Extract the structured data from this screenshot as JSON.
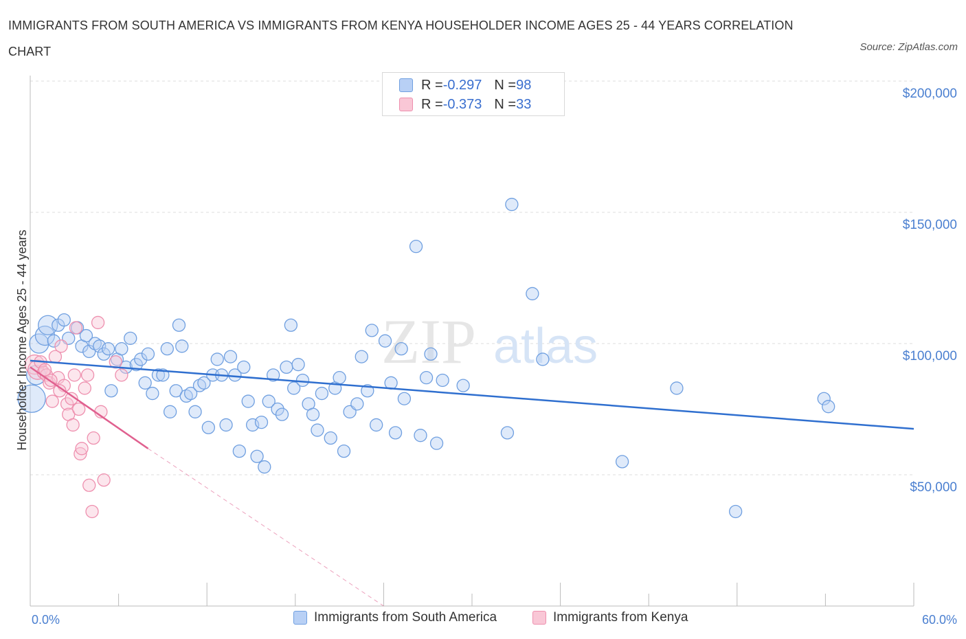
{
  "title": "IMMIGRANTS FROM SOUTH AMERICA VS IMMIGRANTS FROM KENYA HOUSEHOLDER INCOME AGES 25 - 44 YEARS CORRELATION CHART",
  "source": "Source: ZipAtlas.com",
  "watermark": {
    "zip": "ZIP",
    "atlas": "atlas"
  },
  "colors": {
    "blue_fill": "#b8d0f5",
    "blue_stroke": "#6f9fe0",
    "blue_line": "#2f6fcf",
    "pink_fill": "#f9c7d6",
    "pink_stroke": "#ee8fae",
    "pink_line": "#e0608f",
    "grid": "#dddddd",
    "axis_text": "#4a7fd0"
  },
  "legend": {
    "rows": [
      {
        "r_label": "R = ",
        "r_value": "-0.297",
        "n_label": "N = ",
        "n_value": "98",
        "series": "blue"
      },
      {
        "r_label": "R = ",
        "r_value": "-0.373",
        "n_label": "N = ",
        "n_value": "33",
        "series": "pink"
      }
    ]
  },
  "bottom_legend": [
    "Immigrants from South America",
    "Immigrants from Kenya"
  ],
  "chart_data": {
    "type": "scatter",
    "title": "IMMIGRANTS FROM SOUTH AMERICA VS IMMIGRANTS FROM KENYA HOUSEHOLDER INCOME AGES 25 - 44 YEARS CORRELATION CHART",
    "xlabel": "",
    "ylabel": "Householder Income Ages 25 - 44 years",
    "xlim": [
      0,
      60
    ],
    "ylim": [
      0,
      200000
    ],
    "x_tick_labels": [
      "0.0%",
      "60.0%"
    ],
    "y_ticks": [
      50000,
      100000,
      150000,
      200000
    ],
    "y_tick_labels": [
      "$50,000",
      "$100,000",
      "$150,000",
      "$200,000"
    ],
    "grid": true,
    "legend_position": "top-center",
    "series": [
      {
        "name": "Immigrants from South America",
        "color": "blue",
        "R": -0.297,
        "N": 98,
        "trend": {
          "x0": 0,
          "y0": 93500,
          "x1": 60,
          "y1": 67500
        },
        "points": [
          [
            0.1,
            79000,
            3
          ],
          [
            0.4,
            88000,
            2
          ],
          [
            0.6,
            100000,
            2
          ],
          [
            1.0,
            103000,
            2
          ],
          [
            1.2,
            107000,
            2
          ],
          [
            1.6,
            101000,
            1
          ],
          [
            1.9,
            107000,
            1
          ],
          [
            2.3,
            109000,
            1
          ],
          [
            2.6,
            102000,
            1
          ],
          [
            3.2,
            106000,
            1
          ],
          [
            3.5,
            99000,
            1
          ],
          [
            3.8,
            103000,
            1
          ],
          [
            4.0,
            97000,
            1
          ],
          [
            4.4,
            100000,
            1
          ],
          [
            4.7,
            99000,
            1
          ],
          [
            5.0,
            96000,
            1
          ],
          [
            5.3,
            98000,
            1
          ],
          [
            5.5,
            82000,
            1
          ],
          [
            5.9,
            94000,
            1
          ],
          [
            6.2,
            98000,
            1
          ],
          [
            6.5,
            91000,
            1
          ],
          [
            6.8,
            102000,
            1
          ],
          [
            7.2,
            92000,
            1
          ],
          [
            7.5,
            94000,
            1
          ],
          [
            7.8,
            85000,
            1
          ],
          [
            8.0,
            96000,
            1
          ],
          [
            8.3,
            81000,
            1
          ],
          [
            8.7,
            88000,
            1
          ],
          [
            9.0,
            88000,
            1
          ],
          [
            9.3,
            98000,
            1
          ],
          [
            9.5,
            74000,
            1
          ],
          [
            9.9,
            82000,
            1
          ],
          [
            10.1,
            107000,
            1
          ],
          [
            10.3,
            99000,
            1
          ],
          [
            10.6,
            80000,
            1
          ],
          [
            10.9,
            81000,
            1
          ],
          [
            11.2,
            74000,
            1
          ],
          [
            11.5,
            84000,
            1
          ],
          [
            11.8,
            85000,
            1
          ],
          [
            12.1,
            68000,
            1
          ],
          [
            12.4,
            88000,
            1
          ],
          [
            12.7,
            94000,
            1
          ],
          [
            13.0,
            88000,
            1
          ],
          [
            13.3,
            69000,
            1
          ],
          [
            13.6,
            95000,
            1
          ],
          [
            13.9,
            88000,
            1
          ],
          [
            14.2,
            59000,
            1
          ],
          [
            14.5,
            91000,
            1
          ],
          [
            14.8,
            78000,
            1
          ],
          [
            15.1,
            69000,
            1
          ],
          [
            15.4,
            57000,
            1
          ],
          [
            15.7,
            70000,
            1
          ],
          [
            15.9,
            53000,
            1
          ],
          [
            16.2,
            78000,
            1
          ],
          [
            16.5,
            88000,
            1
          ],
          [
            16.8,
            75000,
            1
          ],
          [
            17.1,
            73000,
            1
          ],
          [
            17.4,
            91000,
            1
          ],
          [
            17.7,
            107000,
            1
          ],
          [
            17.9,
            83000,
            1
          ],
          [
            18.2,
            92000,
            1
          ],
          [
            18.5,
            86000,
            1
          ],
          [
            18.9,
            77000,
            1
          ],
          [
            19.2,
            73000,
            1
          ],
          [
            19.5,
            67000,
            1
          ],
          [
            19.8,
            81000,
            1
          ],
          [
            20.4,
            64000,
            1
          ],
          [
            20.7,
            83000,
            1
          ],
          [
            21.0,
            87000,
            1
          ],
          [
            21.3,
            59000,
            1
          ],
          [
            21.7,
            74000,
            1
          ],
          [
            22.2,
            77000,
            1
          ],
          [
            22.5,
            95000,
            1
          ],
          [
            22.9,
            82000,
            1
          ],
          [
            23.2,
            105000,
            1
          ],
          [
            23.5,
            69000,
            1
          ],
          [
            24.1,
            101000,
            1
          ],
          [
            24.5,
            85000,
            1
          ],
          [
            24.8,
            66000,
            1
          ],
          [
            25.2,
            98000,
            1
          ],
          [
            25.4,
            79000,
            1
          ],
          [
            26.2,
            137000,
            1
          ],
          [
            26.5,
            65000,
            1
          ],
          [
            26.9,
            87000,
            1
          ],
          [
            27.2,
            96000,
            1
          ],
          [
            27.6,
            62000,
            1
          ],
          [
            28.0,
            86000,
            1
          ],
          [
            29.4,
            84000,
            1
          ],
          [
            32.4,
            66000,
            1
          ],
          [
            32.7,
            153000,
            1
          ],
          [
            34.1,
            119000,
            1
          ],
          [
            34.8,
            94000,
            1
          ],
          [
            40.2,
            55000,
            1
          ],
          [
            43.9,
            83000,
            1
          ],
          [
            47.9,
            36000,
            1
          ],
          [
            53.9,
            79000,
            1
          ],
          [
            54.2,
            76000,
            1
          ],
          [
            37.5,
            104000,
            0
          ]
        ]
      },
      {
        "name": "Immigrants from Kenya",
        "color": "pink",
        "R": -0.373,
        "N": 33,
        "trend": {
          "x0": 0,
          "y0": 91000,
          "x1": 8,
          "y1": 60000
        },
        "trend_dashed": {
          "x0": 8,
          "y0": 60000,
          "x1": 24,
          "y1": 0
        },
        "points": [
          [
            0.3,
            92000,
            2
          ],
          [
            0.5,
            90000,
            2
          ],
          [
            0.7,
            93000,
            1
          ],
          [
            0.9,
            89000,
            1
          ],
          [
            1.1,
            88000,
            1
          ],
          [
            1.3,
            85000,
            1
          ],
          [
            1.5,
            78000,
            1
          ],
          [
            1.7,
            95000,
            1
          ],
          [
            1.9,
            87000,
            1
          ],
          [
            2.1,
            99000,
            1
          ],
          [
            2.3,
            84000,
            1
          ],
          [
            2.5,
            77000,
            1
          ],
          [
            2.6,
            73000,
            1
          ],
          [
            2.8,
            79000,
            1
          ],
          [
            2.9,
            69000,
            1
          ],
          [
            3.0,
            88000,
            1
          ],
          [
            3.1,
            106000,
            1
          ],
          [
            3.3,
            75000,
            1
          ],
          [
            3.4,
            58000,
            1
          ],
          [
            3.5,
            60000,
            1
          ],
          [
            3.7,
            83000,
            1
          ],
          [
            3.9,
            88000,
            1
          ],
          [
            4.0,
            46000,
            1
          ],
          [
            4.2,
            36000,
            1
          ],
          [
            4.3,
            64000,
            1
          ],
          [
            4.6,
            108000,
            1
          ],
          [
            4.8,
            74000,
            1
          ],
          [
            5.0,
            48000,
            1
          ],
          [
            5.8,
            93000,
            1
          ],
          [
            6.2,
            88000,
            1
          ],
          [
            1.0,
            90000,
            1
          ],
          [
            1.4,
            86000,
            1
          ],
          [
            2.0,
            82000,
            1
          ]
        ]
      }
    ]
  }
}
